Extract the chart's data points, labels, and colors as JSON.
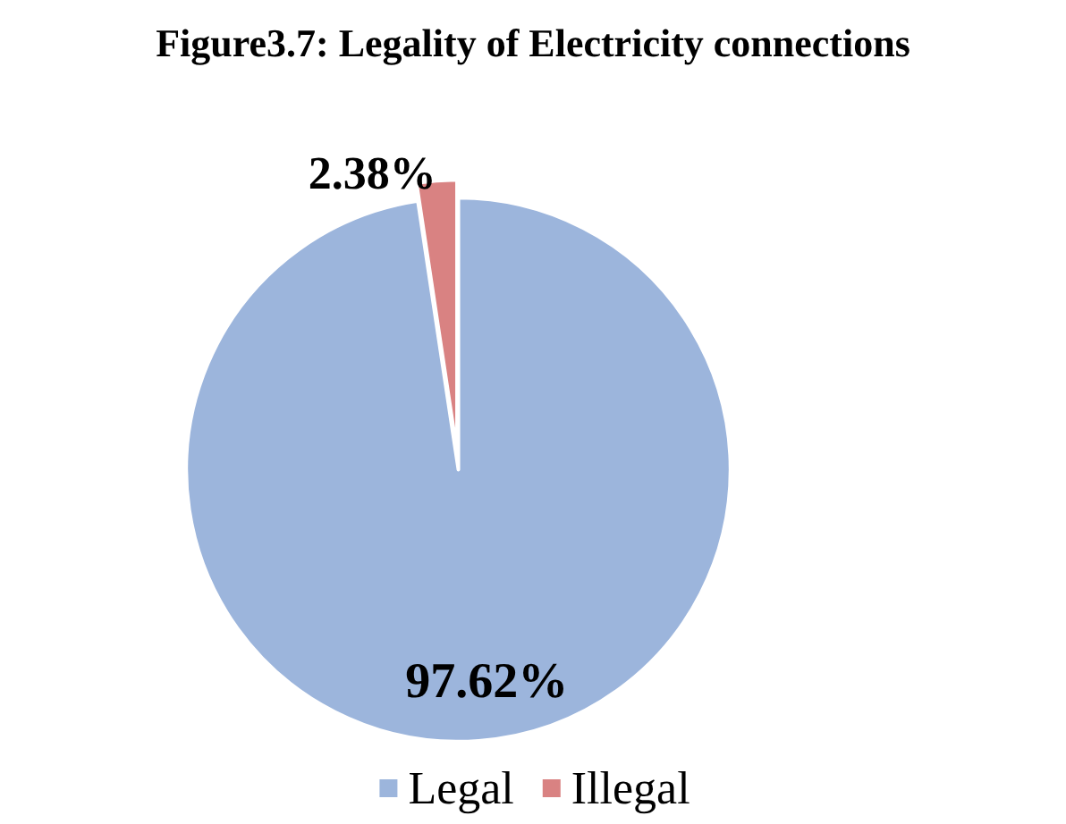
{
  "chart_data": {
    "type": "pie",
    "title": "Figure3.7: Legality of Electricity connections",
    "categories": [
      "Legal",
      "Illegal"
    ],
    "values": [
      97.62,
      2.38
    ],
    "colors": [
      "#9cb5dc",
      "#d98282"
    ],
    "value_labels": [
      "97.62%",
      "2.38%"
    ],
    "legend": "bottom"
  }
}
